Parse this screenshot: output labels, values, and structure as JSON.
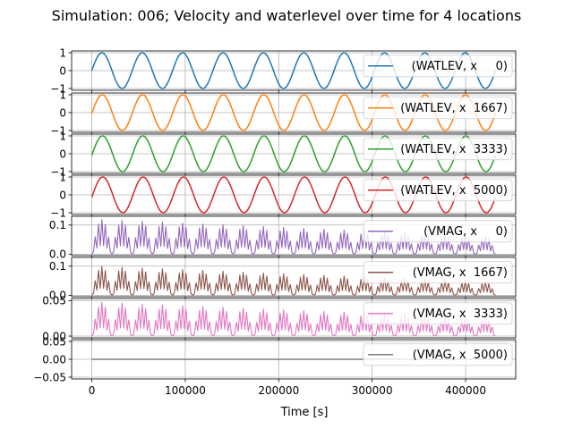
{
  "chart_data": {
    "type": "line",
    "title": "Simulation: 006; Velocity and waterlevel over time for 4 locations",
    "xlabel": "Time [s]",
    "xlim": [
      -21600,
      453600
    ],
    "xticks": [
      0,
      100000,
      200000,
      300000,
      400000
    ],
    "xtick_labels": [
      "0",
      "100000",
      "200000",
      "300000",
      "400000"
    ],
    "grid": true,
    "legend_placement": "right",
    "time_step": 1800,
    "t_end": 432000,
    "panels": [
      {
        "series_name": "(WATLEV, x     0)",
        "color": "#1f77b4",
        "ylim": [
          -1.1,
          1.1
        ],
        "yticks": [
          -1,
          0,
          1
        ],
        "ytick_labels": [
          "−1",
          "0",
          "1"
        ],
        "signal": {
          "kind": "sine",
          "amplitude": 1.0,
          "period": 43200,
          "phase_lag": 0
        }
      },
      {
        "series_name": "(WATLEV, x  1667)",
        "color": "#ff7f0e",
        "ylim": [
          -1.1,
          1.1
        ],
        "yticks": [
          -1,
          0,
          1
        ],
        "ytick_labels": [
          "−1",
          "0",
          "1"
        ],
        "signal": {
          "kind": "sine",
          "amplitude": 1.0,
          "period": 43200,
          "phase_lag": 300
        }
      },
      {
        "series_name": "(WATLEV, x  3333)",
        "color": "#2ca02c",
        "ylim": [
          -1.1,
          1.1
        ],
        "yticks": [
          -1,
          0,
          1
        ],
        "ytick_labels": [
          "−1",
          "0",
          "1"
        ],
        "signal": {
          "kind": "sine",
          "amplitude": 1.0,
          "period": 43200,
          "phase_lag": 600
        }
      },
      {
        "series_name": "(WATLEV, x  5000)",
        "color": "#d62728",
        "ylim": [
          -1.1,
          1.1
        ],
        "yticks": [
          -1,
          0,
          1
        ],
        "ytick_labels": [
          "−1",
          "0",
          "1"
        ],
        "signal": {
          "kind": "sine",
          "amplitude": 1.0,
          "period": 43200,
          "phase_lag": 900
        }
      },
      {
        "series_name": "(VMAG, x     0)",
        "color": "#9467bd",
        "ylim": [
          -0.005,
          0.13
        ],
        "yticks": [
          0,
          0.1
        ],
        "ytick_labels": [
          "0.0",
          "0.1"
        ],
        "signal": {
          "kind": "velocity",
          "peak_start": 0.12,
          "peak_end": 0.06,
          "period": 21600
        }
      },
      {
        "series_name": "(VMAG, x  1667)",
        "color": "#8c564b",
        "ylim": [
          -0.005,
          0.13
        ],
        "yticks": [
          0,
          0.1
        ],
        "ytick_labels": [
          "0.0",
          "0.1"
        ],
        "signal": {
          "kind": "velocity",
          "peak_start": 0.1,
          "peak_end": 0.045,
          "period": 21600
        }
      },
      {
        "series_name": "(VMAG, x  3333)",
        "color": "#e377c2",
        "ylim": [
          -0.0025,
          0.053
        ],
        "yticks": [
          0,
          0.05
        ],
        "ytick_labels": [
          "0.00",
          "0.05"
        ],
        "signal": {
          "kind": "velocity",
          "peak_start": 0.048,
          "peak_end": 0.025,
          "period": 21600
        }
      },
      {
        "series_name": "(VMAG, x  5000)",
        "color": "#7f7f7f",
        "ylim": [
          -0.055,
          0.055
        ],
        "yticks": [
          -0.05,
          0,
          0.05
        ],
        "ytick_labels": [
          "−0.05",
          "0.00",
          "0.05"
        ],
        "signal": {
          "kind": "constant",
          "value": 0
        }
      }
    ]
  }
}
